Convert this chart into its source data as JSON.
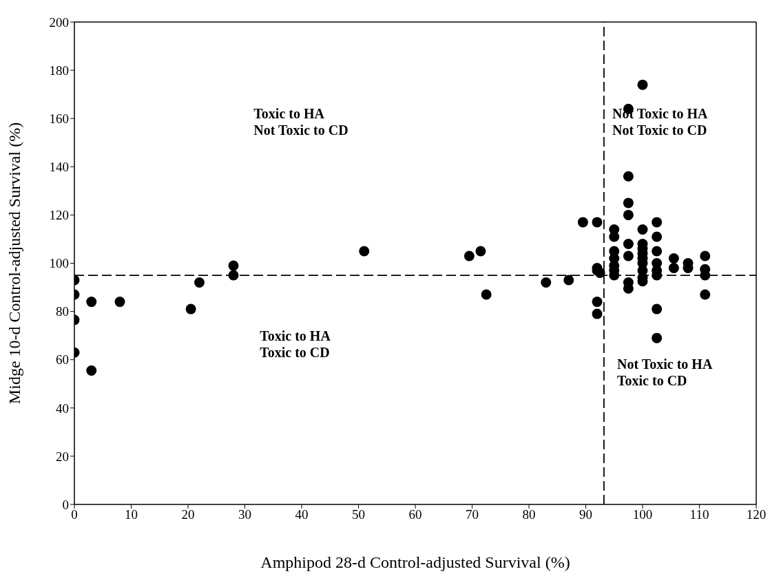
{
  "chart_data": {
    "type": "scatter",
    "xlabel": "Amphipod 28-d Control-adjusted Survival (%)",
    "ylabel": "Midge 10-d Control-adjusted Survival (%)",
    "x": [
      0,
      0,
      0,
      0,
      3,
      3,
      8,
      20.5,
      22,
      28,
      28,
      51,
      69.5,
      71.5,
      72.5,
      83,
      87,
      89.5,
      92,
      92,
      92,
      92,
      92,
      92.5,
      95,
      95,
      95,
      95,
      95,
      95,
      95,
      97.5,
      97.5,
      97.5,
      97.5,
      97.5,
      97.5,
      97.5,
      97.5,
      100,
      100,
      100,
      100,
      100,
      100,
      100,
      100,
      100,
      100,
      102.5,
      102.5,
      102.5,
      102.5,
      102.5,
      102.5,
      102.5,
      102.5,
      105.5,
      105.5,
      108,
      108,
      111,
      111,
      111,
      111
    ],
    "series": [
      {
        "color": "#000000",
        "values": [
          93,
          87,
          76.5,
          63,
          84,
          55.5,
          84,
          81,
          92,
          95,
          99,
          105,
          103,
          105,
          87,
          92,
          93,
          117,
          117,
          98,
          97,
          84,
          79,
          96,
          97,
          99,
          102,
          105,
          111,
          114,
          95,
          164,
          136,
          125,
          120,
          108,
          103,
          92,
          89.5,
          174,
          114,
          108,
          106,
          104,
          102,
          100,
          97,
          94,
          92.5,
          117,
          111,
          105,
          100,
          97,
          95,
          81,
          69,
          102,
          98,
          100,
          98,
          103,
          97.5,
          95,
          87
        ]
      }
    ],
    "xlim": [
      0,
      120
    ],
    "xticks": [
      0,
      10,
      20,
      30,
      40,
      50,
      60,
      70,
      80,
      90,
      100,
      110,
      120
    ],
    "ylim": [
      0,
      200
    ],
    "yticks": [
      0,
      20,
      40,
      60,
      80,
      100,
      120,
      140,
      160,
      180,
      200
    ],
    "marker": "circle",
    "ref_lines": [
      {
        "axis": "x",
        "value": 93.2,
        "line_style": "dashed",
        "color": "#000000"
      },
      {
        "axis": "y",
        "value": 95,
        "line_style": "dashed",
        "color": "#000000"
      }
    ],
    "annotations": [
      "Toxic to HA\nNot Toxic to CD",
      "Not Toxic to HA\nNot Toxic to CD",
      "Toxic to HA\nToxic to CD",
      "Not Toxic to HA\nToxic to CD"
    ]
  }
}
